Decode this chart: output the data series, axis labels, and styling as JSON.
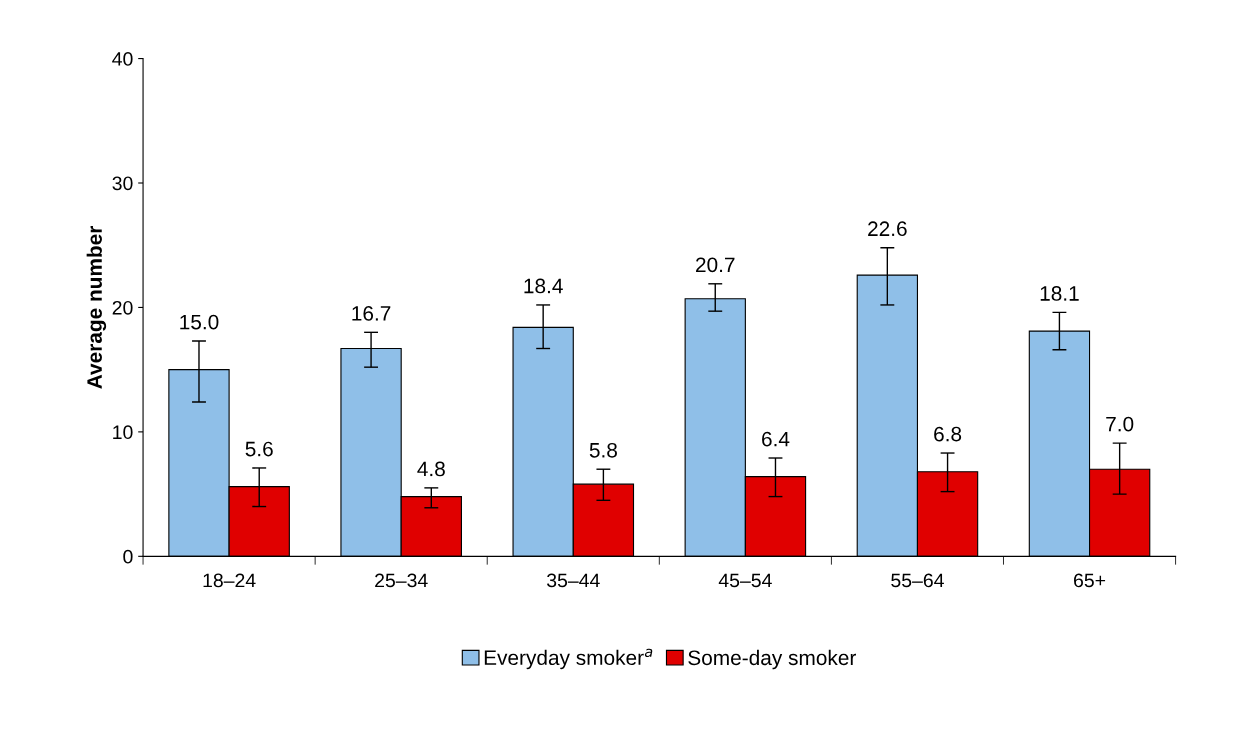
{
  "chart_data": {
    "type": "bar",
    "ylabel": "Average number",
    "categories": [
      "18–24",
      "25–34",
      "35–44",
      "45–54",
      "55–64",
      "65+"
    ],
    "series": [
      {
        "name": "Everyday smoker$^{a}$",
        "color": "#8fbfe8",
        "values": [
          15.0,
          16.7,
          18.4,
          20.7,
          22.6,
          18.1
        ],
        "value_labels": [
          "15.0",
          "16.7",
          "18.4",
          "20.7",
          "22.6",
          "18.1"
        ],
        "errors": [
          [
            12.4,
            17.3
          ],
          [
            15.2,
            18.0
          ],
          [
            16.7,
            20.2
          ],
          [
            19.7,
            21.9
          ],
          [
            20.2,
            24.8
          ],
          [
            16.6,
            19.6
          ]
        ]
      },
      {
        "name": "Some-day smoker",
        "color": "#e00000",
        "values": [
          5.6,
          4.8,
          5.8,
          6.4,
          6.8,
          7.0
        ],
        "value_labels": [
          "5.6",
          "4.8",
          "5.8",
          "6.4",
          "6.8",
          "7.0"
        ],
        "errors": [
          [
            4.0,
            7.1
          ],
          [
            3.9,
            5.5
          ],
          [
            4.5,
            7.0
          ],
          [
            4.8,
            7.9
          ],
          [
            5.2,
            8.3
          ],
          [
            5.0,
            9.1
          ]
        ]
      }
    ],
    "ylim": [
      0,
      40
    ],
    "yticks": [
      0,
      10,
      20,
      30,
      40
    ],
    "grid": false,
    "legend": "bottom"
  }
}
